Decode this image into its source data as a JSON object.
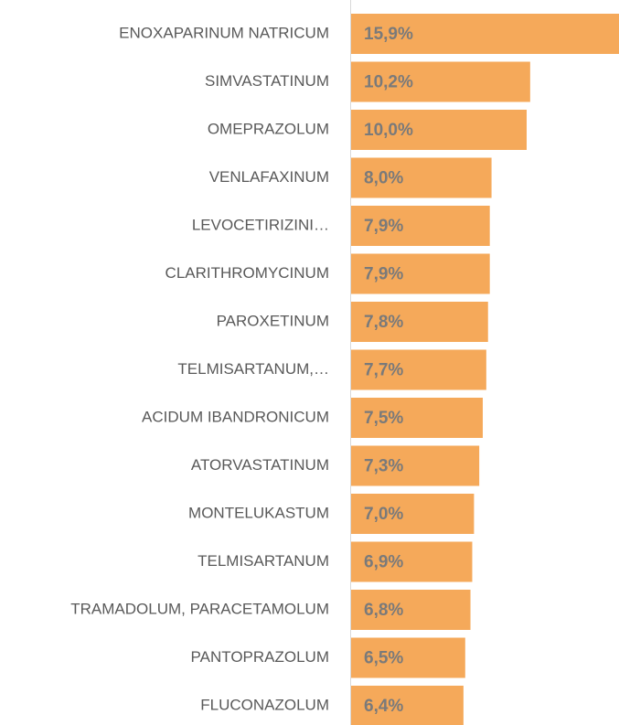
{
  "chart_data": {
    "type": "bar",
    "orientation": "horizontal",
    "categories": [
      "ENOXAPARINUM NATRICUM",
      "SIMVASTATINUM",
      "OMEPRAZOLUM",
      "VENLAFAXINUM",
      "LEVOCETIRIZINI…",
      "CLARITHROMYCINUM",
      "PAROXETINUM",
      "TELMISARTANUM,…",
      "ACIDUM IBANDRONICUM",
      "ATORVASTATINUM",
      "MONTELUKASTUM",
      "TELMISARTANUM",
      "TRAMADOLUM, PARACETAMOLUM",
      "PANTOPRAZOLUM",
      "FLUCONAZOLUM"
    ],
    "values": [
      15.9,
      10.2,
      10.0,
      8.0,
      7.9,
      7.9,
      7.8,
      7.7,
      7.5,
      7.3,
      7.0,
      6.9,
      6.8,
      6.5,
      6.4
    ],
    "value_labels": [
      "15,9%",
      "10,2%",
      "10,0%",
      "8,0%",
      "7,9%",
      "7,9%",
      "7,8%",
      "7,7%",
      "7,5%",
      "7,3%",
      "7,0%",
      "6,9%",
      "6,8%",
      "6,5%",
      "6,4%"
    ],
    "color": "#f5a95a"
  }
}
